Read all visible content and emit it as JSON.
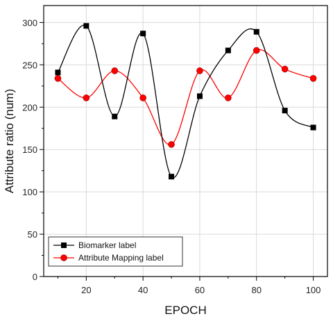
{
  "chart_data": {
    "type": "line",
    "title": "",
    "xlabel": "EPOCH",
    "ylabel": "Attribute ratio (num)",
    "x": [
      10,
      20,
      30,
      40,
      50,
      60,
      70,
      80,
      90,
      100
    ],
    "xlim": [
      5,
      105
    ],
    "ylim": [
      0,
      320
    ],
    "xticks": [
      20,
      40,
      60,
      80,
      100
    ],
    "yticks": [
      0,
      50,
      100,
      150,
      200,
      250,
      300
    ],
    "grid": true,
    "smoothed": true,
    "legend_position": "bottom-left",
    "series": [
      {
        "name": "Biomarker label",
        "marker": "square",
        "color": "#000000",
        "values": [
          241,
          296,
          189,
          287,
          118,
          213,
          267,
          289,
          196,
          176
        ]
      },
      {
        "name": "Attribute Mapping label",
        "marker": "circle",
        "color": "#ff0000",
        "values": [
          234,
          211,
          243,
          211,
          156,
          243,
          211,
          267,
          245,
          234
        ]
      }
    ]
  }
}
